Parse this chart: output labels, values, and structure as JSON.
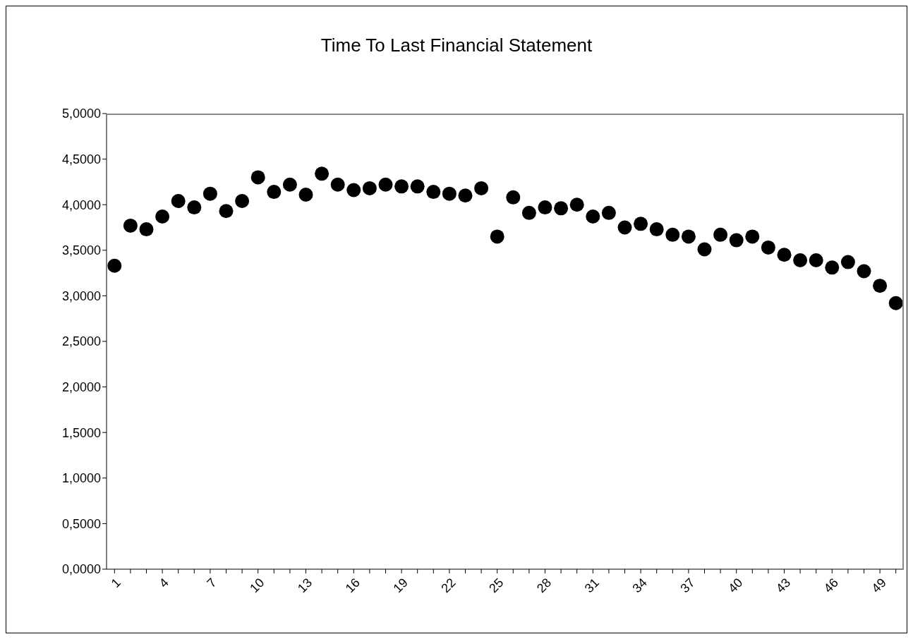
{
  "chart_data": {
    "type": "scatter",
    "title": "Time To Last Financial Statement",
    "categories": [
      "1",
      null,
      null,
      "4",
      null,
      null,
      "7",
      null,
      null,
      "10",
      null,
      null,
      "13",
      null,
      null,
      "16",
      null,
      null,
      "19",
      null,
      null,
      "22",
      null,
      null,
      "25",
      null,
      null,
      "28",
      null,
      null,
      "31",
      null,
      null,
      "34",
      null,
      null,
      "37",
      null,
      null,
      "40",
      null,
      null,
      "43",
      null,
      null,
      "46",
      null,
      null,
      "49",
      null
    ],
    "values": [
      3.33,
      3.77,
      3.73,
      3.87,
      4.04,
      3.97,
      4.12,
      3.93,
      4.04,
      4.3,
      4.14,
      4.22,
      4.11,
      4.34,
      4.22,
      4.16,
      4.18,
      4.22,
      4.2,
      4.2,
      4.14,
      4.12,
      4.1,
      4.18,
      3.65,
      4.08,
      3.91,
      3.97,
      3.96,
      4.0,
      3.87,
      3.91,
      3.75,
      3.79,
      3.73,
      3.67,
      3.65,
      3.51,
      3.67,
      3.61,
      3.65,
      3.53,
      3.45,
      3.39,
      3.39,
      3.31,
      3.37,
      3.27,
      3.11,
      2.92
    ],
    "color": "#000000",
    "marker": "circle",
    "grid": false,
    "legend": false,
    "ylim": [
      0,
      5
    ],
    "yticks": [
      {
        "value": 0,
        "label": "0,0000"
      },
      {
        "value": 0.5,
        "label": "0,5000"
      },
      {
        "value": 1,
        "label": "1,0000"
      },
      {
        "value": 1.5,
        "label": "1,5000"
      },
      {
        "value": 2,
        "label": "2,0000"
      },
      {
        "value": 2.5,
        "label": "2,5000"
      },
      {
        "value": 3,
        "label": "3,0000"
      },
      {
        "value": 3.5,
        "label": "3,5000"
      },
      {
        "value": 4,
        "label": "4,0000"
      },
      {
        "value": 4.5,
        "label": "4,5000"
      },
      {
        "value": 5,
        "label": "5,0000"
      }
    ]
  }
}
